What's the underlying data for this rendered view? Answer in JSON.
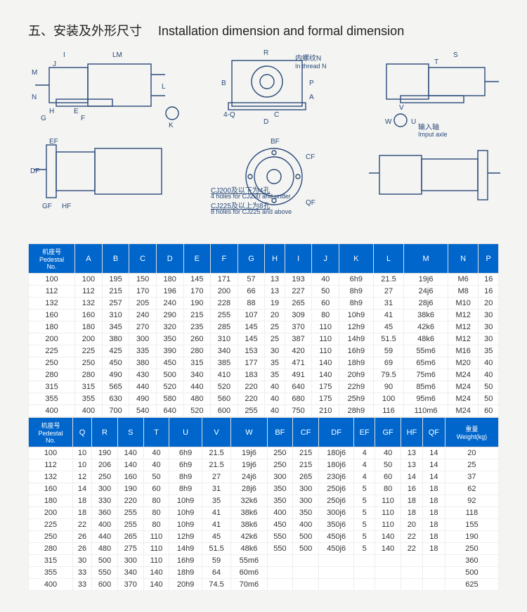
{
  "title": {
    "cn": "五、安装及外形尺寸",
    "en": "Installation dimension and formal dimension"
  },
  "diagramLabels": {
    "I": "I",
    "J": "J",
    "LM": "LM",
    "M": "M",
    "N": "N",
    "H": "H",
    "G": "G",
    "E": "E",
    "F": "F",
    "L": "L",
    "K": "K",
    "R": "R",
    "B": "B",
    "A": "A",
    "P": "P",
    "C": "C",
    "D": "D",
    "Q": "4-Q",
    "threadN_cn": "内螺纹N",
    "threadN_en": "In thread N",
    "S": "S",
    "T": "T",
    "V": "V",
    "W": "W",
    "U": "U",
    "inputAxle_cn": "输入轴",
    "inputAxle_en": "Imput axle",
    "EF": "EF",
    "DF": "DF",
    "GF": "GF",
    "HF": "HF",
    "BF": "BF",
    "CF": "CF",
    "QF": "QF",
    "cj200_cn": "CJ200及以下为4孔",
    "cj200_en": "4 holes for CJ200 and under",
    "cj225_cn": "CJ225及以上为8孔",
    "cj225_en": "8 holes for CJ225 and above"
  },
  "table1": {
    "headers": [
      {
        "cn": "机座号",
        "en": "Pedestal",
        "sub": "No."
      },
      {
        "t": "A"
      },
      {
        "t": "B"
      },
      {
        "t": "C"
      },
      {
        "t": "D"
      },
      {
        "t": "E"
      },
      {
        "t": "F"
      },
      {
        "t": "G"
      },
      {
        "t": "H"
      },
      {
        "t": "I"
      },
      {
        "t": "J"
      },
      {
        "t": "K"
      },
      {
        "t": "L"
      },
      {
        "t": "M"
      },
      {
        "t": "N"
      },
      {
        "t": "P"
      }
    ],
    "rows": [
      [
        "100",
        "100",
        "195",
        "150",
        "180",
        "145",
        "171",
        "57",
        "13",
        "193",
        "40",
        "6h9",
        "21.5",
        "19j6",
        "M6",
        "16"
      ],
      [
        "112",
        "112",
        "215",
        "170",
        "196",
        "170",
        "200",
        "66",
        "13",
        "227",
        "50",
        "8h9",
        "27",
        "24j6",
        "M8",
        "16"
      ],
      [
        "132",
        "132",
        "257",
        "205",
        "240",
        "190",
        "228",
        "88",
        "19",
        "265",
        "60",
        "8h9",
        "31",
        "28j6",
        "M10",
        "20"
      ],
      [
        "160",
        "160",
        "310",
        "240",
        "290",
        "215",
        "255",
        "107",
        "20",
        "309",
        "80",
        "10h9",
        "41",
        "38k6",
        "M12",
        "30"
      ],
      [
        "180",
        "180",
        "345",
        "270",
        "320",
        "235",
        "285",
        "145",
        "25",
        "370",
        "110",
        "12h9",
        "45",
        "42k6",
        "M12",
        "30"
      ],
      [
        "200",
        "200",
        "380",
        "300",
        "350",
        "260",
        "310",
        "145",
        "25",
        "387",
        "110",
        "14h9",
        "51.5",
        "48k6",
        "M12",
        "30"
      ],
      [
        "225",
        "225",
        "425",
        "335",
        "390",
        "280",
        "340",
        "153",
        "30",
        "420",
        "110",
        "16h9",
        "59",
        "55m6",
        "M16",
        "35"
      ],
      [
        "250",
        "250",
        "450",
        "380",
        "450",
        "315",
        "385",
        "177",
        "35",
        "471",
        "140",
        "18h9",
        "69",
        "65m6",
        "M20",
        "40"
      ],
      [
        "280",
        "280",
        "490",
        "430",
        "500",
        "340",
        "410",
        "183",
        "35",
        "491",
        "140",
        "20h9",
        "79.5",
        "75m6",
        "M24",
        "40"
      ],
      [
        "315",
        "315",
        "565",
        "440",
        "520",
        "440",
        "520",
        "220",
        "40",
        "640",
        "175",
        "22h9",
        "90",
        "85m6",
        "M24",
        "50"
      ],
      [
        "355",
        "355",
        "630",
        "490",
        "580",
        "480",
        "560",
        "220",
        "40",
        "680",
        "175",
        "25h9",
        "100",
        "95m6",
        "M24",
        "50"
      ],
      [
        "400",
        "400",
        "700",
        "540",
        "640",
        "520",
        "600",
        "255",
        "40",
        "750",
        "210",
        "28h9",
        "116",
        "110m6",
        "M24",
        "60"
      ]
    ]
  },
  "table2": {
    "headers": [
      {
        "cn": "机座号",
        "en": "Pedestal",
        "sub": "No."
      },
      {
        "t": "Q"
      },
      {
        "t": "R"
      },
      {
        "t": "S"
      },
      {
        "t": "T"
      },
      {
        "t": "U"
      },
      {
        "t": "V"
      },
      {
        "t": "W"
      },
      {
        "t": "BF"
      },
      {
        "t": "CF"
      },
      {
        "t": "DF"
      },
      {
        "t": "EF"
      },
      {
        "t": "GF"
      },
      {
        "t": "HF"
      },
      {
        "t": "QF"
      },
      {
        "cn": "重量",
        "en": "Weight(kg)"
      }
    ],
    "rows": [
      [
        "100",
        "10",
        "190",
        "140",
        "40",
        "6h9",
        "21.5",
        "19j6",
        "250",
        "215",
        "180j6",
        "4",
        "40",
        "13",
        "14",
        "20"
      ],
      [
        "112",
        "10",
        "206",
        "140",
        "40",
        "6h9",
        "21.5",
        "19j6",
        "250",
        "215",
        "180j6",
        "4",
        "50",
        "13",
        "14",
        "25"
      ],
      [
        "132",
        "12",
        "250",
        "160",
        "50",
        "8h9",
        "27",
        "24j6",
        "300",
        "265",
        "230j6",
        "4",
        "60",
        "14",
        "14",
        "37"
      ],
      [
        "160",
        "14",
        "300",
        "190",
        "60",
        "8h9",
        "31",
        "28j6",
        "350",
        "300",
        "250j6",
        "5",
        "80",
        "16",
        "18",
        "62"
      ],
      [
        "180",
        "18",
        "330",
        "220",
        "80",
        "10h9",
        "35",
        "32k6",
        "350",
        "300",
        "250j6",
        "5",
        "110",
        "18",
        "18",
        "92"
      ],
      [
        "200",
        "18",
        "360",
        "255",
        "80",
        "10h9",
        "41",
        "38k6",
        "400",
        "350",
        "300j6",
        "5",
        "110",
        "18",
        "18",
        "118"
      ],
      [
        "225",
        "22",
        "400",
        "255",
        "80",
        "10h9",
        "41",
        "38k6",
        "450",
        "400",
        "350j6",
        "5",
        "110",
        "20",
        "18",
        "155"
      ],
      [
        "250",
        "26",
        "440",
        "265",
        "110",
        "12h9",
        "45",
        "42k6",
        "550",
        "500",
        "450j6",
        "5",
        "140",
        "22",
        "18",
        "190"
      ],
      [
        "280",
        "26",
        "480",
        "275",
        "110",
        "14h9",
        "51.5",
        "48k6",
        "550",
        "500",
        "450j6",
        "5",
        "140",
        "22",
        "18",
        "250"
      ],
      [
        "315",
        "30",
        "500",
        "300",
        "110",
        "16h9",
        "59",
        "55m6",
        "",
        "",
        "",
        "",
        "",
        "",
        "",
        "360"
      ],
      [
        "355",
        "33",
        "550",
        "340",
        "140",
        "18h9",
        "64",
        "60m6",
        "",
        "",
        "",
        "",
        "",
        "",
        "",
        "500"
      ],
      [
        "400",
        "33",
        "600",
        "370",
        "140",
        "20h9",
        "74.5",
        "70m6",
        "",
        "",
        "",
        "",
        "",
        "",
        "",
        "625"
      ]
    ]
  },
  "style": {
    "headerBg": "#0066cc",
    "headerColor": "#ffffff",
    "strokeColor": "#2a4a7a",
    "bodyBg": "#f4f4f2"
  }
}
